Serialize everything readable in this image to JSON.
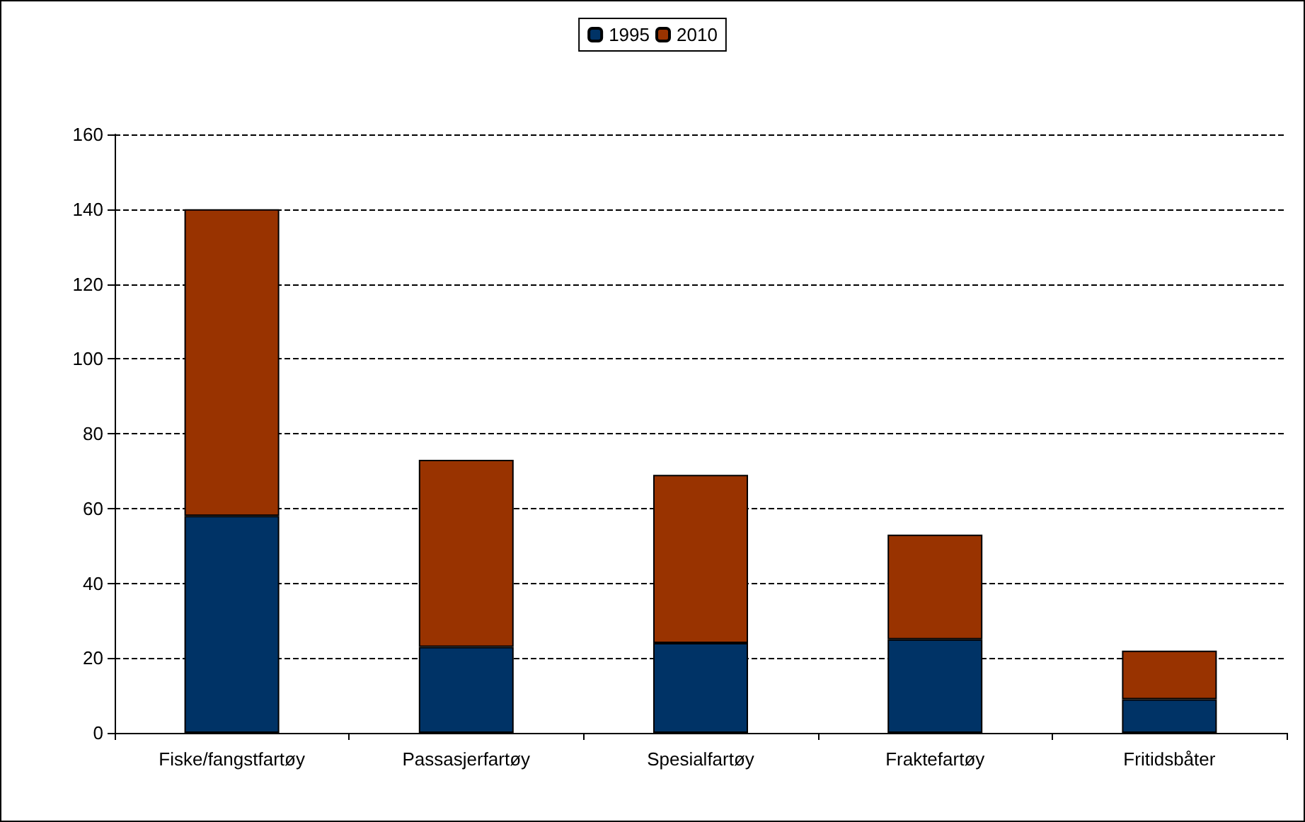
{
  "chart_data": {
    "type": "bar",
    "stacked": true,
    "categories": [
      "Fiske/fangstfartøy",
      "Passasjerfartøy",
      "Spesialfartøy",
      "Fraktefartøy",
      "Fritidsbåter"
    ],
    "series": [
      {
        "name": "1995",
        "color": "#003366",
        "values": [
          58,
          23,
          24,
          25,
          9
        ]
      },
      {
        "name": "2010",
        "color": "#993300",
        "values": [
          82,
          50,
          45,
          28,
          13
        ]
      }
    ],
    "ylim": [
      0,
      160
    ],
    "yticks": [
      0,
      20,
      40,
      60,
      80,
      100,
      120,
      140,
      160
    ],
    "grid": "y",
    "legend": "top"
  }
}
